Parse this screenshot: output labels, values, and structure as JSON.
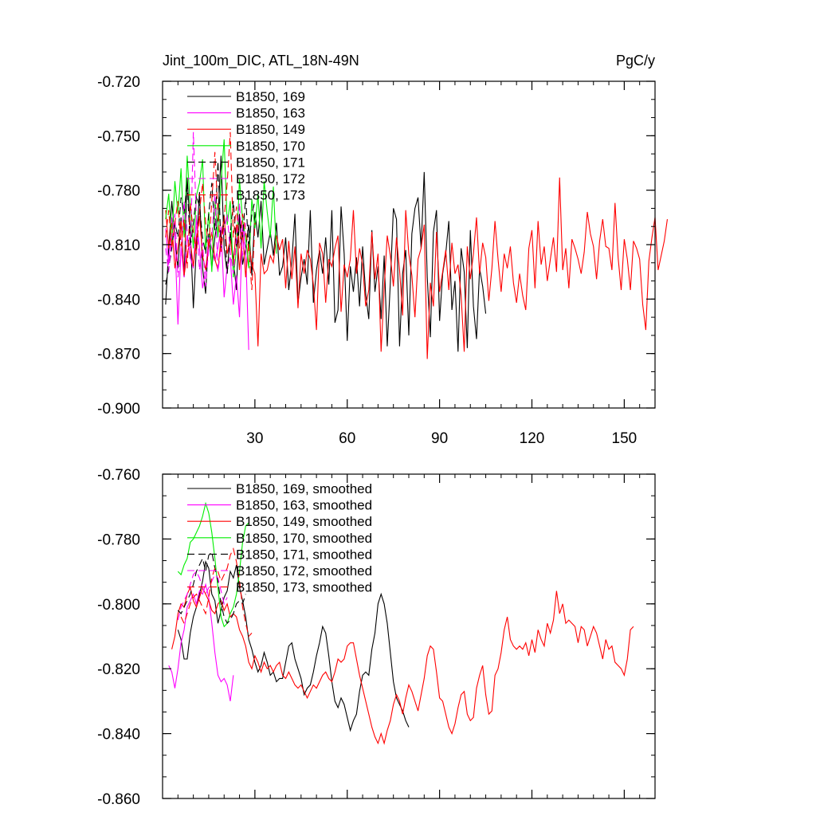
{
  "figure": {
    "title_left": "Jint_100m_DIC, ATL_18N-49N",
    "title_right": "PgC/y"
  },
  "chart_data": [
    {
      "type": "line",
      "title": "Jint_100m_DIC, ATL_18N-49N",
      "units": "PgC/y",
      "xlim": [
        0,
        160
      ],
      "ylim": [
        -0.9,
        -0.72
      ],
      "yticks": [
        -0.72,
        -0.75,
        -0.78,
        -0.81,
        -0.84,
        -0.87,
        -0.9
      ],
      "ytick_labels": [
        "-0.720",
        "-0.750",
        "-0.780",
        "-0.810",
        "-0.840",
        "-0.870",
        "-0.900"
      ],
      "xticks": [
        30,
        60,
        90,
        120,
        150
      ],
      "xtick_labels": [
        "30",
        "60",
        "90",
        "120",
        "150"
      ],
      "legend_position": "top-left",
      "series": [
        {
          "name": "B1850, 169",
          "color": "#000000",
          "dash": "solid",
          "x0": 1,
          "values": [
            -0.843,
            -0.812,
            -0.786,
            -0.806,
            -0.823,
            -0.795,
            -0.828,
            -0.773,
            -0.802,
            -0.845,
            -0.811,
            -0.781,
            -0.823,
            -0.837,
            -0.804,
            -0.823,
            -0.806,
            -0.795,
            -0.761,
            -0.812,
            -0.826,
            -0.803,
            -0.818,
            -0.835,
            -0.793,
            -0.821,
            -0.812,
            -0.799,
            -0.827,
            -0.792,
            -0.806,
            -0.786,
            -0.821,
            -0.812,
            -0.803,
            -0.816,
            -0.798,
            -0.827,
            -0.822,
            -0.806,
            -0.835,
            -0.819,
            -0.793,
            -0.842,
            -0.828,
            -0.818,
            -0.832,
            -0.791,
            -0.842,
            -0.824,
            -0.813,
            -0.826,
            -0.806,
            -0.832,
            -0.791,
            -0.853,
            -0.846,
            -0.789,
            -0.815,
            -0.863,
            -0.822,
            -0.836,
            -0.817,
            -0.844,
            -0.811,
            -0.837,
            -0.851,
            -0.802,
            -0.836,
            -0.822,
            -0.851,
            -0.816,
            -0.866,
            -0.831,
            -0.79,
            -0.796,
            -0.866,
            -0.826,
            -0.813,
            -0.86,
            -0.804,
            -0.79,
            -0.784,
            -0.812,
            -0.77,
            -0.828,
            -0.861,
            -0.803,
            -0.791,
            -0.852,
            -0.826,
            -0.815,
            -0.797,
            -0.846,
            -0.83,
            -0.869,
            -0.812,
            -0.825,
            -0.867,
            -0.802,
            -0.844,
            -0.862,
            -0.823,
            -0.833,
            -0.848
          ]
        },
        {
          "name": "B1850, 163",
          "color": "#ff00ff",
          "dash": "solid",
          "x0": 1,
          "values": [
            -0.801,
            -0.821,
            -0.795,
            -0.806,
            -0.854,
            -0.811,
            -0.828,
            -0.805,
            -0.817,
            -0.823,
            -0.796,
            -0.812,
            -0.834,
            -0.824,
            -0.806,
            -0.812,
            -0.819,
            -0.812,
            -0.8,
            -0.839,
            -0.822,
            -0.817,
            -0.843,
            -0.827,
            -0.85,
            -0.799,
            -0.813,
            -0.868
          ]
        },
        {
          "name": "B1850, 149",
          "color": "#ff0000",
          "dash": "solid",
          "x0": 1,
          "values": [
            -0.791,
            -0.812,
            -0.798,
            -0.823,
            -0.812,
            -0.797,
            -0.827,
            -0.815,
            -0.808,
            -0.822,
            -0.806,
            -0.794,
            -0.816,
            -0.824,
            -0.811,
            -0.803,
            -0.818,
            -0.824,
            -0.806,
            -0.795,
            -0.815,
            -0.807,
            -0.821,
            -0.799,
            -0.824,
            -0.803,
            -0.828,
            -0.808,
            -0.821,
            -0.826,
            -0.866,
            -0.815,
            -0.826,
            -0.824,
            -0.816,
            -0.82,
            -0.805,
            -0.813,
            -0.807,
            -0.834,
            -0.808,
            -0.829,
            -0.811,
            -0.845,
            -0.815,
            -0.826,
            -0.813,
            -0.818,
            -0.832,
            -0.857,
            -0.809,
            -0.815,
            -0.842,
            -0.818,
            -0.822,
            -0.812,
            -0.805,
            -0.847,
            -0.821,
            -0.828,
            -0.818,
            -0.791,
            -0.826,
            -0.812,
            -0.821,
            -0.844,
            -0.835,
            -0.803,
            -0.829,
            -0.815,
            -0.869,
            -0.834,
            -0.805,
            -0.816,
            -0.833,
            -0.806,
            -0.824,
            -0.849,
            -0.791,
            -0.815,
            -0.827,
            -0.85,
            -0.818,
            -0.812,
            -0.799,
            -0.873,
            -0.831,
            -0.844,
            -0.803,
            -0.836,
            -0.825,
            -0.813,
            -0.835,
            -0.809,
            -0.826,
            -0.821,
            -0.838,
            -0.869,
            -0.811,
            -0.829,
            -0.815,
            -0.795,
            -0.826,
            -0.809,
            -0.817,
            -0.841,
            -0.823,
            -0.797,
            -0.818,
            -0.836,
            -0.815,
            -0.823,
            -0.811,
            -0.831,
            -0.842,
            -0.826,
            -0.838,
            -0.846,
            -0.812,
            -0.802,
            -0.834,
            -0.797,
            -0.821,
            -0.811,
            -0.83,
            -0.818,
            -0.806,
            -0.825,
            -0.773,
            -0.824,
            -0.812,
            -0.834,
            -0.807,
            -0.812,
            -0.818,
            -0.826,
            -0.814,
            -0.792,
            -0.804,
            -0.811,
            -0.829,
            -0.808,
            -0.796,
            -0.811,
            -0.812,
            -0.824,
            -0.787,
            -0.817,
            -0.835,
            -0.807,
            -0.818,
            -0.835,
            -0.808,
            -0.812,
            -0.818,
            -0.843,
            -0.857,
            -0.819,
            -0.806,
            -0.795,
            -0.824,
            -0.816,
            -0.808,
            -0.796
          ]
        },
        {
          "name": "B1850, 170",
          "color": "#00ee00",
          "dash": "solid",
          "x0": 1,
          "values": [
            -0.796,
            -0.782,
            -0.81,
            -0.775,
            -0.793,
            -0.768,
            -0.806,
            -0.761,
            -0.789,
            -0.812,
            -0.783,
            -0.776,
            -0.763,
            -0.814,
            -0.792,
            -0.825,
            -0.784,
            -0.806,
            -0.775,
            -0.752,
            -0.799,
            -0.786,
            -0.828,
            -0.813,
            -0.774,
            -0.797,
            -0.806,
            -0.823,
            -0.785,
            -0.801,
            -0.782,
            -0.812,
            -0.775,
            -0.792,
            -0.806,
            -0.778,
            -0.815
          ]
        },
        {
          "name": "B1850, 171",
          "color": "#000000",
          "dash": "dash",
          "x0": 1,
          "values": [
            -0.832,
            -0.823,
            -0.812,
            -0.798,
            -0.806,
            -0.784,
            -0.793,
            -0.775,
            -0.812,
            -0.798,
            -0.783,
            -0.789,
            -0.806,
            -0.815,
            -0.793,
            -0.776,
            -0.802,
            -0.764,
            -0.812,
            -0.793,
            -0.826,
            -0.804,
            -0.786,
            -0.812,
            -0.795,
            -0.806,
            -0.784,
            -0.812,
            -0.793,
            -0.786
          ]
        },
        {
          "name": "B1850, 172",
          "color": "#ff00ff",
          "dash": "dash",
          "x0": 1,
          "values": [
            -0.812,
            -0.825,
            -0.806,
            -0.793,
            -0.828,
            -0.815,
            -0.786,
            -0.803,
            -0.818,
            -0.748,
            -0.797,
            -0.824,
            -0.809,
            -0.833,
            -0.812,
            -0.806,
            -0.782,
            -0.825,
            -0.811,
            -0.802,
            -0.793,
            -0.814,
            -0.826,
            -0.808,
            -0.787,
            -0.816,
            -0.798
          ]
        },
        {
          "name": "B1850, 173",
          "color": "#ff0000",
          "dash": "dash",
          "x0": 1,
          "values": [
            -0.806,
            -0.791,
            -0.812,
            -0.798,
            -0.786,
            -0.811,
            -0.796,
            -0.823,
            -0.787,
            -0.803,
            -0.815,
            -0.792,
            -0.776,
            -0.798,
            -0.812,
            -0.786,
            -0.759,
            -0.793,
            -0.814,
            -0.796,
            -0.776,
            -0.748,
            -0.806,
            -0.789,
            -0.812,
            -0.793,
            -0.803,
            -0.812,
            -0.835,
            -0.798
          ]
        }
      ]
    },
    {
      "type": "line",
      "xlim": [
        0,
        160
      ],
      "ylim": [
        -0.86,
        -0.76
      ],
      "yticks": [
        -0.76,
        -0.78,
        -0.8,
        -0.82,
        -0.84,
        -0.86
      ],
      "ytick_labels": [
        "-0.760",
        "-0.780",
        "-0.800",
        "-0.820",
        "-0.840",
        "-0.860"
      ],
      "xticks": [
        30,
        60,
        90,
        120,
        150
      ],
      "xtick_labels": [],
      "legend_position": "top-left",
      "series": [
        {
          "name": "B1850, 169, smoothed",
          "color": "#000000",
          "dash": "solid",
          "x0": 5,
          "values": [
            -0.808,
            -0.811,
            -0.817,
            -0.817,
            -0.809,
            -0.804,
            -0.801,
            -0.797,
            -0.793,
            -0.787,
            -0.789,
            -0.797,
            -0.799,
            -0.806,
            -0.802,
            -0.798,
            -0.796,
            -0.79,
            -0.792,
            -0.788,
            -0.795,
            -0.799,
            -0.804,
            -0.811,
            -0.814,
            -0.818,
            -0.821,
            -0.819,
            -0.815,
            -0.818,
            -0.822,
            -0.821,
            -0.824,
            -0.823,
            -0.823,
            -0.818,
            -0.813,
            -0.812,
            -0.817,
            -0.82,
            -0.823,
            -0.828,
            -0.826,
            -0.825,
            -0.821,
            -0.816,
            -0.812,
            -0.807,
            -0.809,
            -0.816,
            -0.824,
            -0.83,
            -0.832,
            -0.829,
            -0.831,
            -0.835,
            -0.839,
            -0.836,
            -0.834,
            -0.827,
            -0.822,
            -0.821,
            -0.822,
            -0.814,
            -0.809,
            -0.8,
            -0.797,
            -0.8,
            -0.806,
            -0.815,
            -0.824,
            -0.829,
            -0.831,
            -0.833,
            -0.836,
            -0.838
          ]
        },
        {
          "name": "B1850, 163, smoothed",
          "color": "#ff00ff",
          "dash": "solid",
          "x0": 2,
          "values": [
            -0.819,
            -0.821,
            -0.826,
            -0.82,
            -0.812,
            -0.808,
            -0.801,
            -0.799,
            -0.797,
            -0.8,
            -0.796,
            -0.797,
            -0.794,
            -0.798,
            -0.806,
            -0.815,
            -0.822,
            -0.824,
            -0.823,
            -0.825,
            -0.83,
            -0.822
          ]
        },
        {
          "name": "B1850, 149, smoothed",
          "color": "#ff0000",
          "dash": "solid",
          "x0": 3,
          "values": [
            -0.814,
            -0.81,
            -0.803,
            -0.8,
            -0.801,
            -0.797,
            -0.795,
            -0.799,
            -0.801,
            -0.798,
            -0.795,
            -0.797,
            -0.799,
            -0.802,
            -0.803,
            -0.8,
            -0.799,
            -0.802,
            -0.8,
            -0.804,
            -0.803,
            -0.804,
            -0.808,
            -0.81,
            -0.813,
            -0.818,
            -0.82,
            -0.816,
            -0.818,
            -0.821,
            -0.818,
            -0.82,
            -0.819,
            -0.821,
            -0.819,
            -0.818,
            -0.822,
            -0.823,
            -0.821,
            -0.823,
            -0.825,
            -0.826,
            -0.825,
            -0.827,
            -0.829,
            -0.827,
            -0.825,
            -0.826,
            -0.824,
            -0.822,
            -0.821,
            -0.823,
            -0.824,
            -0.821,
            -0.817,
            -0.818,
            -0.817,
            -0.813,
            -0.812,
            -0.812,
            -0.817,
            -0.822,
            -0.826,
            -0.83,
            -0.834,
            -0.838,
            -0.841,
            -0.843,
            -0.84,
            -0.843,
            -0.839,
            -0.836,
            -0.831,
            -0.828,
            -0.83,
            -0.834,
            -0.829,
            -0.825,
            -0.827,
            -0.83,
            -0.833,
            -0.828,
            -0.823,
            -0.816,
            -0.813,
            -0.814,
            -0.821,
            -0.829,
            -0.83,
            -0.834,
            -0.838,
            -0.84,
            -0.837,
            -0.832,
            -0.828,
            -0.827,
            -0.834,
            -0.836,
            -0.835,
            -0.826,
            -0.822,
            -0.819,
            -0.828,
            -0.834,
            -0.833,
            -0.822,
            -0.82,
            -0.815,
            -0.808,
            -0.804,
            -0.811,
            -0.813,
            -0.814,
            -0.813,
            -0.814,
            -0.812,
            -0.816,
            -0.811,
            -0.815,
            -0.808,
            -0.811,
            -0.813,
            -0.806,
            -0.809,
            -0.805,
            -0.796,
            -0.803,
            -0.8,
            -0.806,
            -0.805,
            -0.806,
            -0.807,
            -0.812,
            -0.807,
            -0.808,
            -0.813,
            -0.81,
            -0.807,
            -0.809,
            -0.813,
            -0.817,
            -0.811,
            -0.814,
            -0.813,
            -0.818,
            -0.819,
            -0.82,
            -0.822,
            -0.817,
            -0.808,
            -0.807
          ]
        },
        {
          "name": "B1850, 170, smoothed",
          "color": "#00ee00",
          "dash": "solid",
          "x0": 5,
          "values": [
            -0.79,
            -0.791,
            -0.788,
            -0.786,
            -0.781,
            -0.78,
            -0.778,
            -0.776,
            -0.773,
            -0.769,
            -0.772,
            -0.778,
            -0.786,
            -0.795,
            -0.804,
            -0.807,
            -0.806,
            -0.803,
            -0.801,
            -0.797,
            -0.79,
            -0.781,
            -0.776,
            -0.775
          ]
        },
        {
          "name": "B1850, 171, smoothed",
          "color": "#000000",
          "dash": "dash",
          "x0": 5,
          "values": [
            -0.802,
            -0.803,
            -0.801,
            -0.799,
            -0.797,
            -0.794,
            -0.79,
            -0.788,
            -0.786,
            -0.79,
            -0.785,
            -0.784,
            -0.789,
            -0.793,
            -0.8,
            -0.804,
            -0.806,
            -0.805,
            -0.803,
            -0.8,
            -0.799,
            -0.8,
            -0.797
          ]
        },
        {
          "name": "B1850, 172, smoothed",
          "color": "#ff00ff",
          "dash": "dash",
          "x0": 5,
          "values": [
            -0.805,
            -0.801,
            -0.799,
            -0.797,
            -0.794,
            -0.791,
            -0.79,
            -0.792,
            -0.795,
            -0.797,
            -0.795,
            -0.793,
            -0.791,
            -0.792,
            -0.796,
            -0.8,
            -0.798
          ]
        },
        {
          "name": "B1850, 173, smoothed",
          "color": "#ff0000",
          "dash": "dash",
          "x0": 6,
          "values": [
            -0.804,
            -0.806,
            -0.803,
            -0.8,
            -0.798,
            -0.797,
            -0.799,
            -0.801,
            -0.803,
            -0.798,
            -0.792,
            -0.789,
            -0.79,
            -0.793,
            -0.791,
            -0.789,
            -0.785,
            -0.783,
            -0.787,
            -0.793,
            -0.801,
            -0.806,
            -0.81,
            -0.809
          ]
        }
      ]
    }
  ]
}
